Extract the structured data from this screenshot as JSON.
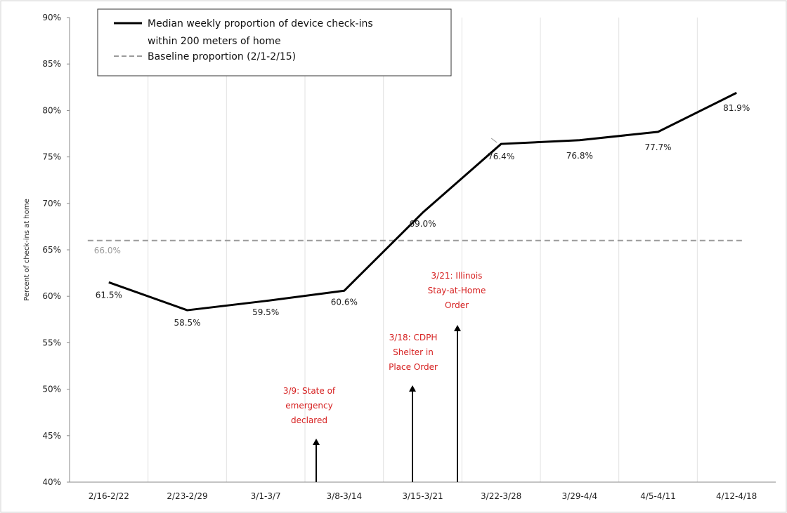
{
  "chart_data": {
    "type": "line",
    "ylabel": "Percent of check-ins at home",
    "xlabel": "",
    "ylim": [
      40,
      90
    ],
    "y_ticks": [
      "40%",
      "45%",
      "50%",
      "55%",
      "60%",
      "65%",
      "70%",
      "75%",
      "80%",
      "85%",
      "90%"
    ],
    "categories": [
      "2/16-2/22",
      "2/23-2/29",
      "3/1-3/7",
      "3/8-3/14",
      "3/15-3/21",
      "3/22-3/28",
      "3/29-4/4",
      "4/5-4/11",
      "4/12-4/18"
    ],
    "grid": "vertical",
    "legend_position": "top-left",
    "series": [
      {
        "name_lines": [
          "Median weekly proportion of device check-ins",
          "within 200 meters of home"
        ],
        "style": "solid",
        "color": "#000000",
        "values": [
          61.5,
          58.5,
          59.5,
          60.6,
          69.0,
          76.4,
          76.8,
          77.7,
          81.9
        ],
        "labels": [
          "61.5%",
          "58.5%",
          "59.5%",
          "60.6%",
          "69.0%",
          "76.4%",
          "76.8%",
          "77.7%",
          "81.9%"
        ]
      },
      {
        "name": "Baseline proportion (2/1-2/15)",
        "style": "dashed",
        "color": "#9a9a9a",
        "value": 66.0,
        "label": "66.0%"
      }
    ],
    "annotations": [
      {
        "lines": [
          "3/9: State of",
          "emergency",
          "declared"
        ],
        "color": "#d62020"
      },
      {
        "lines": [
          "3/18: CDPH",
          "Shelter in",
          "Place Order"
        ],
        "color": "#d62020"
      },
      {
        "lines": [
          "3/21: Illinois",
          "Stay-at-Home",
          "Order"
        ],
        "color": "#d62020"
      }
    ]
  }
}
